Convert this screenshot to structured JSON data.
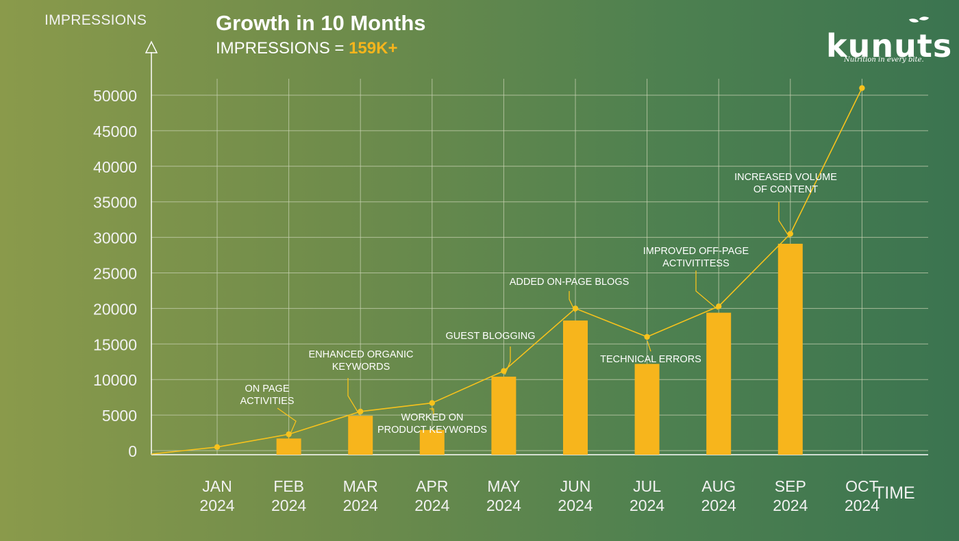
{
  "header": {
    "ylabel": "IMPRESSIONS",
    "title": "Growth in 10 Months",
    "subtitle_prefix": "IMPRESSIONS = ",
    "subtitle_value": "159K+"
  },
  "logo": {
    "word": "kunuts",
    "tagline": "Nutrition in every bite."
  },
  "colors": {
    "accent": "#f7b51c",
    "line": "#f7c21c",
    "grid": "#c9d2b3",
    "text": "#ffffff"
  },
  "chart_data": {
    "type": "bar",
    "title": "Growth in 10 Months",
    "ylabel": "IMPRESSIONS",
    "xlabel": "TIME",
    "ylim": [
      0,
      50000
    ],
    "yticks": [
      0,
      5000,
      10000,
      15000,
      20000,
      25000,
      30000,
      35000,
      40000,
      45000,
      50000
    ],
    "grid": true,
    "categories": [
      [
        "JAN",
        "2024"
      ],
      [
        "FEB",
        "2024"
      ],
      [
        "MAR",
        "2024"
      ],
      [
        "APR",
        "2024"
      ],
      [
        "MAY",
        "2024"
      ],
      [
        "JUN",
        "2024"
      ],
      [
        "JUL",
        "2024"
      ],
      [
        "AUG",
        "2024"
      ],
      [
        "SEP",
        "2024"
      ],
      [
        "OCT",
        "2024"
      ]
    ],
    "bars": [
      0,
      1700,
      4900,
      2900,
      10400,
      18300,
      12200,
      19400,
      29100,
      0
    ],
    "line": [
      500,
      2300,
      5500,
      6700,
      11200,
      20000,
      16000,
      20300,
      30500,
      51000
    ],
    "annotations": [
      {
        "index": 1,
        "lines": [
          "ON PAGE",
          "ACTIVITIES"
        ]
      },
      {
        "index": 2,
        "lines": [
          "ENHANCED ORGANIC",
          "KEYWORDS"
        ]
      },
      {
        "index": 3,
        "lines": [
          "WORKED ON",
          "PRODUCT KEYWORDS"
        ]
      },
      {
        "index": 4,
        "lines": [
          "GUEST BLOGGING"
        ]
      },
      {
        "index": 5,
        "lines": [
          "ADDED ON-PAGE BLOGS"
        ]
      },
      {
        "index": 6,
        "lines": [
          "TECHNICAL ERRORS"
        ]
      },
      {
        "index": 7,
        "lines": [
          "IMPROVED OFF-PAGE",
          "ACTIVITITESS"
        ]
      },
      {
        "index": 8,
        "lines": [
          "INCREASED VOLUME",
          "OF CONTENT"
        ]
      }
    ]
  }
}
